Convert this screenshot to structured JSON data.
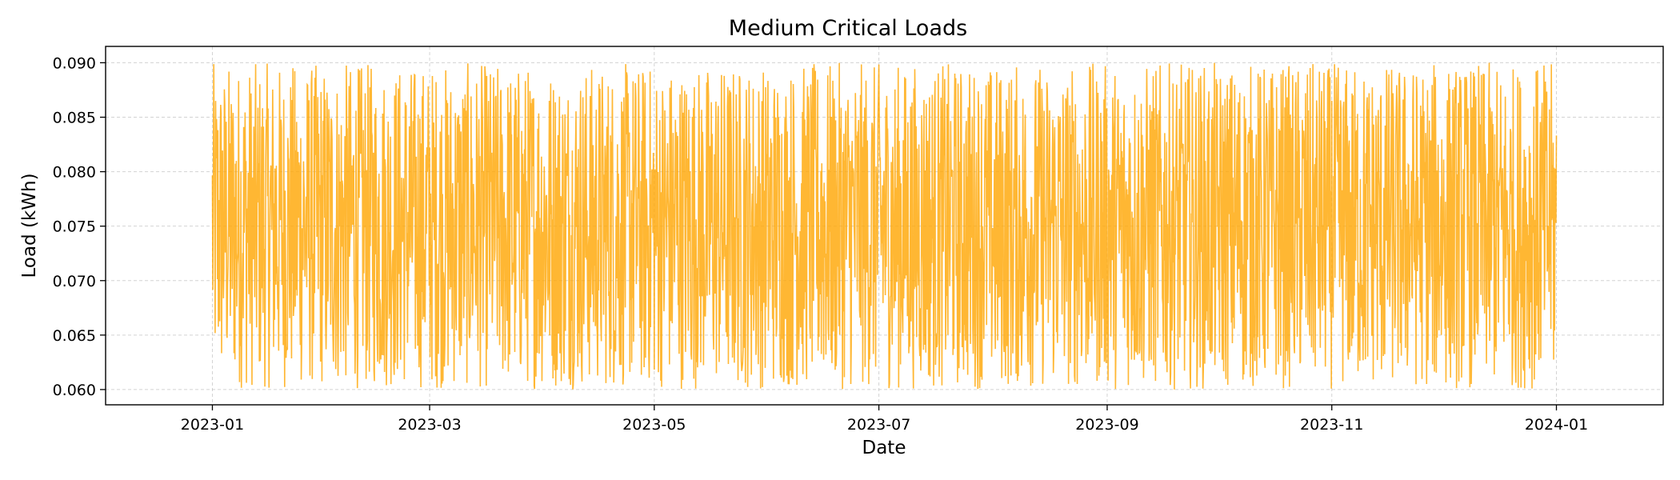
{
  "chart_data": {
    "type": "line",
    "title": "Medium Critical Loads",
    "xlabel": "Date",
    "ylabel": "Load (kWh)",
    "x_start": "2023-01-01",
    "x_end": "2024-01-01",
    "x_frequency": "hourly",
    "xlim": [
      "2022-12-03",
      "2024-01-30"
    ],
    "ylim": [
      0.0586,
      0.0915
    ],
    "x_ticks": [
      "2023-01",
      "2023-03",
      "2023-05",
      "2023-07",
      "2023-09",
      "2023-11",
      "2024-01"
    ],
    "y_ticks": [
      "0.060",
      "0.065",
      "0.070",
      "0.075",
      "0.080",
      "0.085",
      "0.090"
    ],
    "value_range": [
      0.06,
      0.09
    ],
    "grid": true,
    "series": [
      {
        "color": "#ffa500",
        "opacity": 0.8
      }
    ]
  }
}
